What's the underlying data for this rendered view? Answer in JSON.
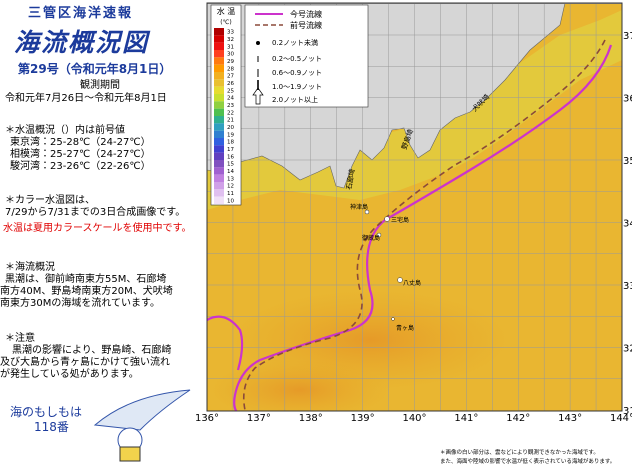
{
  "header": {
    "org": "三管区海洋速報",
    "title": "海流概況図",
    "issue": "第29号（令和元年8月1日）",
    "period_label": "観測期間",
    "period": "令和元年7月26日～令和元年8月1日"
  },
  "water_temp": {
    "heading": "＊水温概況（）内は前号値",
    "rows": [
      "東京湾：25-28℃（24-27℃）",
      "相模湾：25-27℃（24-27℃）",
      "駿河湾：23-26℃（22-26℃）"
    ]
  },
  "color_note": [
    "＊カラー水温図は、",
    "7/29から7/31までの3日合成画像です。"
  ],
  "scale_note": "水温は夏用カラースケールを使用中です。",
  "current": {
    "heading": "＊海流概況",
    "lines": [
      "黒潮は、御前崎南東方55M、石廊埼",
      "南方40M、野島埼南東方20M、犬吠埼",
      "南東方30Mの海域を流れています。"
    ]
  },
  "caution": {
    "heading": "＊注意",
    "lines": [
      "黒潮の影響により、野島崎、石廊崎",
      "及び大島から青ヶ島にかけて強い流れ",
      "が発生している処があります。"
    ]
  },
  "mascot": [
    "海のもしもは",
    "118番"
  ],
  "map": {
    "lon_labels": [
      "136°",
      "137°",
      "138°",
      "139°",
      "140°",
      "141°",
      "142°",
      "143°",
      "144°"
    ],
    "lat_labels": [
      "37",
      "36",
      "35",
      "34",
      "33",
      "32",
      "31"
    ],
    "scale": {
      "title": "水 温",
      "unit": "(℃)",
      "ticks": [
        "33",
        "32",
        "31",
        "30",
        "29",
        "28",
        "27",
        "26",
        "25",
        "24",
        "23",
        "22",
        "21",
        "20",
        "19",
        "18",
        "17",
        "16",
        "15",
        "14",
        "13",
        "12",
        "11",
        "10"
      ]
    },
    "legend": {
      "current": "今号流線",
      "previous": "前号流線",
      "arrows": [
        "0.2ノット未満",
        "0.2～0.5ノット",
        "0.6～0.9ノット",
        "1.0～1.9ノット",
        "2.0ノット以上"
      ]
    },
    "places": [
      "神津島",
      "三宅島",
      "御蔵島",
      "八丈島",
      "青ヶ島"
    ],
    "capes": [
      "石廊埼",
      "野島埼",
      "犬吠埼"
    ],
    "footnote": [
      "＊画像の白い部分は、雲などにより観測できなかった海域です。",
      "また、海面や陸域の影響で水温が低く表示されている海域があります。"
    ]
  }
}
